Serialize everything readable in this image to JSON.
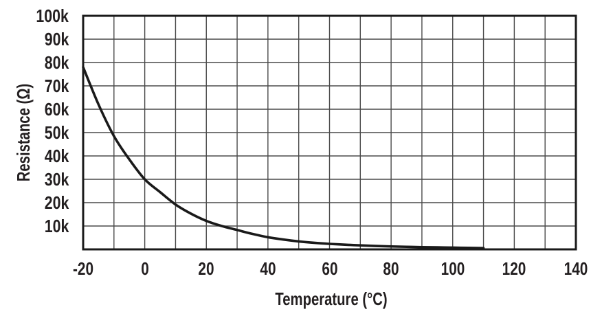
{
  "figure": {
    "background": "#ffffff"
  },
  "chart_data": {
    "type": "line",
    "title": "",
    "xlabel": "Temperature (°C)",
    "ylabel": "Resistance (Ω)",
    "xlim": [
      -20,
      140
    ],
    "ylim": [
      0,
      100000
    ],
    "x_grid_step": 10,
    "y_grid_step": 10000,
    "grid": "on",
    "legend": "none",
    "x_ticks": [
      {
        "value": -20,
        "label": "-20"
      },
      {
        "value": 0,
        "label": "0"
      },
      {
        "value": 20,
        "label": "20"
      },
      {
        "value": 40,
        "label": "40"
      },
      {
        "value": 60,
        "label": "60"
      },
      {
        "value": 80,
        "label": "80"
      },
      {
        "value": 100,
        "label": "100"
      },
      {
        "value": 120,
        "label": "120"
      },
      {
        "value": 140,
        "label": "140"
      }
    ],
    "y_ticks": [
      {
        "value": 10000,
        "label": "10k"
      },
      {
        "value": 20000,
        "label": "20k"
      },
      {
        "value": 30000,
        "label": "30k"
      },
      {
        "value": 40000,
        "label": "40k"
      },
      {
        "value": 50000,
        "label": "50k"
      },
      {
        "value": 60000,
        "label": "60k"
      },
      {
        "value": 70000,
        "label": "70k"
      },
      {
        "value": 80000,
        "label": "80k"
      },
      {
        "value": 90000,
        "label": "90k"
      },
      {
        "value": 100000,
        "label": "100k"
      }
    ],
    "colors": {
      "curve": "#1a1a1a",
      "axis": "#1a1a1a",
      "grid": "#4a4a4a",
      "text": "#231f20",
      "background": "#ffffff"
    },
    "series": [
      {
        "name": "resistance",
        "x": [
          -20,
          -15,
          -10,
          -5,
          0,
          5,
          10,
          15,
          20,
          25,
          30,
          35,
          40,
          45,
          50,
          55,
          60,
          65,
          70,
          75,
          80,
          85,
          90,
          95,
          100,
          105,
          110
        ],
        "y": [
          78000,
          62000,
          48500,
          38500,
          30000,
          24500,
          19200,
          15300,
          12200,
          10000,
          8300,
          6600,
          5200,
          4200,
          3400,
          2800,
          2350,
          2000,
          1700,
          1450,
          1250,
          1100,
          950,
          850,
          750,
          650,
          550
        ]
      }
    ]
  }
}
